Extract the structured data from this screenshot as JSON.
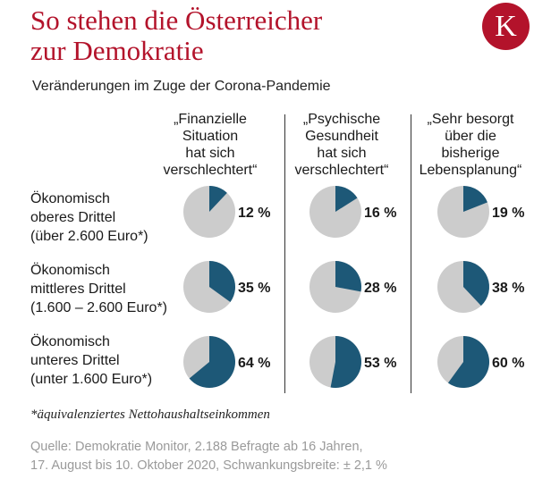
{
  "header": {
    "title": "So stehen die Österreicher\nzur Demokratie",
    "subtitle": "Veränderungen im Zuge der Corona-Pandemie",
    "logo_letter": "K"
  },
  "colors": {
    "brand_red": "#b3132b",
    "pie_filled": "#1d5877",
    "pie_rest": "#cccccc",
    "source_gray": "#9a9a9a"
  },
  "chart_data": {
    "type": "pie",
    "columns": [
      "„Finanzielle\nSituation\nhat sich\nverschlechtert“",
      "„Psychische\nGesundheit\nhat sich\nverschlechtert“",
      "„Sehr besorgt\nüber die\nbisherige\nLebensplanung“"
    ],
    "rows": [
      "Ökonomisch\noberes Drittel\n(über 2.600 Euro*)",
      "Ökonomisch\nmittleres Drittel\n(1.600 – 2.600 Euro*)",
      "Ökonomisch\nunteres Drittel\n(unter 1.600 Euro*)"
    ],
    "values": [
      [
        12,
        16,
        19
      ],
      [
        35,
        28,
        38
      ],
      [
        64,
        53,
        60
      ]
    ],
    "labels": [
      [
        "12 %",
        "16 %",
        "19 %"
      ],
      [
        "35 %",
        "28 %",
        "38 %"
      ],
      [
        "64 %",
        "53 %",
        "60 %"
      ]
    ]
  },
  "footnote": "*äquivalenziertes Nettohaushaltseinkommen",
  "source": "Quelle: Demokratie Monitor, 2.188 Befragte ab 16 Jahren,\n17. August bis 10. Oktober 2020, Schwankungsbreite: ± 2,1 %"
}
